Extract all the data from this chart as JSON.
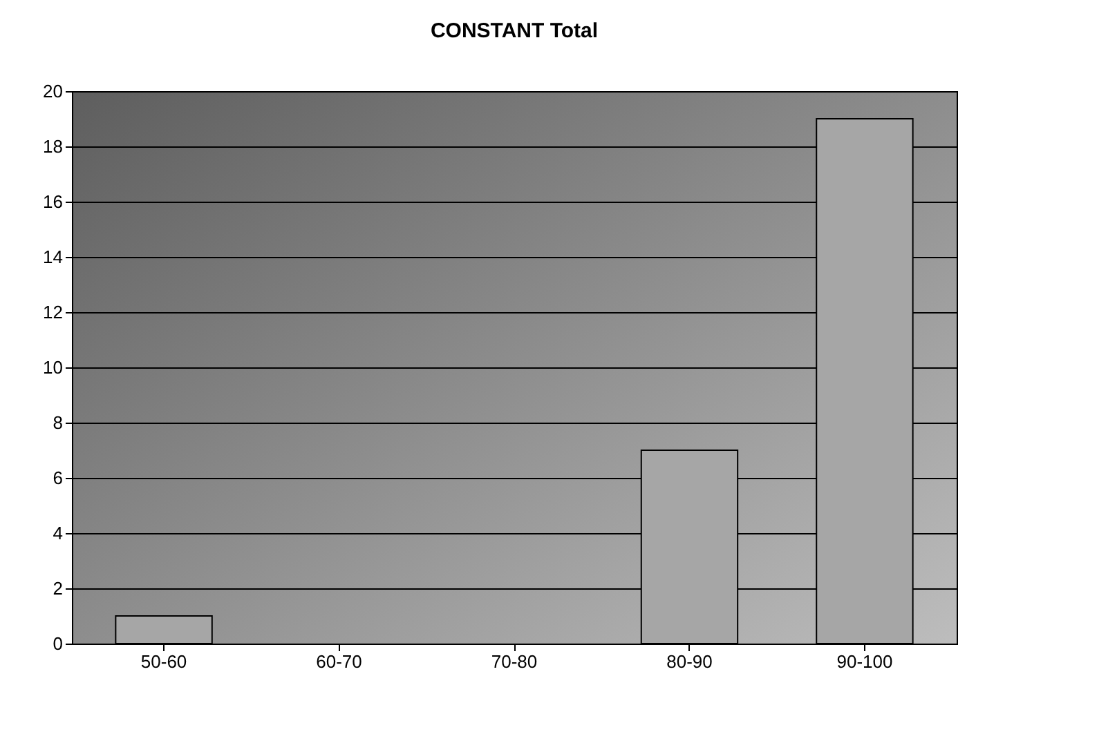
{
  "chart_data": {
    "type": "bar",
    "title": "CONSTANT Total",
    "categories": [
      "50-60",
      "60-70",
      "70-80",
      "80-90",
      "90-100"
    ],
    "values": [
      1,
      0,
      0,
      7,
      19
    ],
    "color": "#a6a6a6",
    "ylim": [
      0,
      20
    ],
    "yticks": [
      0,
      2,
      4,
      6,
      8,
      10,
      12,
      14,
      16,
      18,
      20
    ],
    "grid": "y"
  }
}
